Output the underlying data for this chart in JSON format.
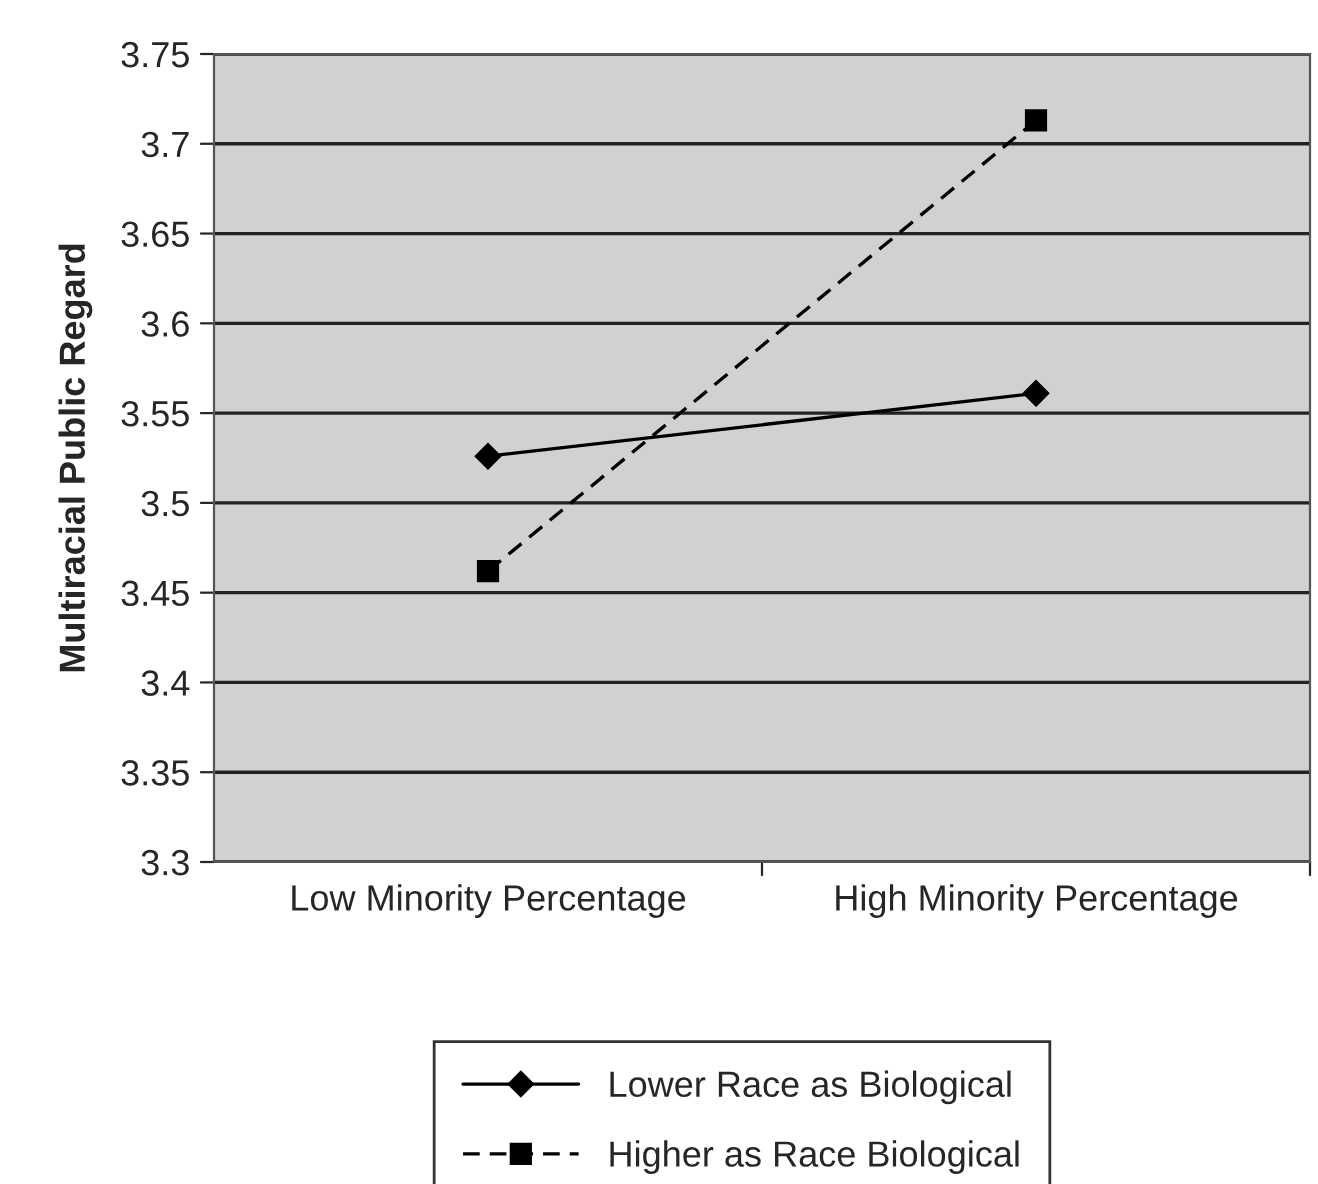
{
  "chart_data": {
    "type": "line",
    "ylabel": "Multiracial Public Regard",
    "categories": [
      "Low Minority Percentage",
      "High Minority Percentage"
    ],
    "series": [
      {
        "name": "Lower Race as Biological",
        "color": "#000000",
        "values": [
          3.526,
          3.561
        ],
        "marker": "diamond",
        "line_style": "solid"
      },
      {
        "name": "Higher as Race Biological",
        "color": "#000000",
        "values": [
          3.462,
          3.713
        ],
        "marker": "square",
        "line_style": "dashed"
      }
    ],
    "ylim": [
      3.3,
      3.75
    ],
    "yticks": [
      3.3,
      3.35,
      3.4,
      3.45,
      3.5,
      3.55,
      3.6,
      3.65,
      3.7,
      3.75
    ],
    "grid": "y",
    "legend": "bottom"
  }
}
